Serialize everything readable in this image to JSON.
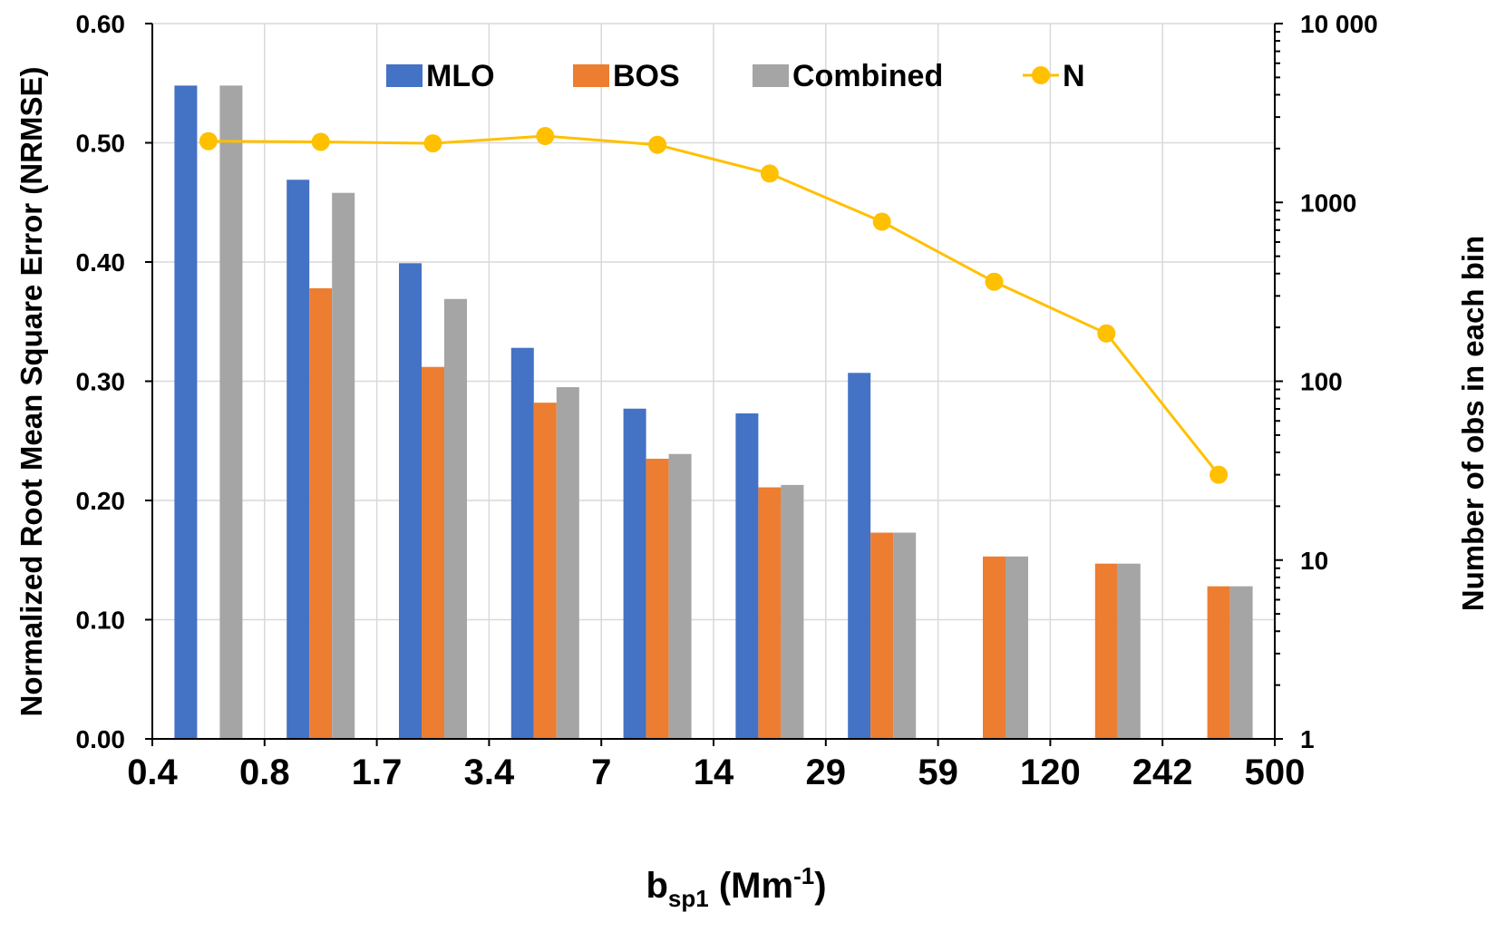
{
  "chart_data": {
    "type": "bar",
    "categories": [
      "0.4-0.8",
      "0.8-1.7",
      "1.7-3.4",
      "3.4-7",
      "7-14",
      "14-29",
      "29-59",
      "59-120",
      "120-242",
      "242-500"
    ],
    "x_tick_labels": [
      "0.4",
      "0.8",
      "1.7",
      "3.4",
      "7",
      "14",
      "29",
      "59",
      "120",
      "242",
      "500"
    ],
    "xlabel": {
      "main": "b",
      "sub": "sp1",
      "units_pre": " (Mm",
      "units_sup": "-1",
      "units_post": ")"
    },
    "ylabel": "Normalized Root Mean Square Error (NRMSE)",
    "y2label": "Number of obs in each bin",
    "ylim": [
      0,
      0.6
    ],
    "y_tick_labels": [
      "0.00",
      "0.10",
      "0.20",
      "0.30",
      "0.40",
      "0.50",
      "0.60"
    ],
    "y2lim": [
      1,
      10000
    ],
    "y2_scale": "log",
    "y2_tick_labels": [
      "1",
      "10",
      "100",
      "1000",
      "10 000"
    ],
    "series": [
      {
        "name": "MLO",
        "kind": "bar",
        "color": "#4472C4",
        "values": [
          0.548,
          0.469,
          0.399,
          0.328,
          0.277,
          0.273,
          0.307,
          null,
          null,
          null
        ]
      },
      {
        "name": "BOS",
        "kind": "bar",
        "color": "#ED7D31",
        "values": [
          null,
          0.378,
          0.312,
          0.282,
          0.235,
          0.211,
          0.173,
          0.153,
          0.147,
          0.128
        ]
      },
      {
        "name": "Combined",
        "kind": "bar",
        "color": "#A5A5A5",
        "values": [
          0.548,
          0.458,
          0.369,
          0.295,
          0.239,
          0.213,
          0.173,
          0.153,
          0.147,
          0.128
        ]
      },
      {
        "name": "N",
        "kind": "line",
        "axis": "secondary",
        "color": "#FFC000",
        "values": [
          2200,
          2180,
          2140,
          2350,
          2100,
          1450,
          780,
          360,
          185,
          30
        ]
      }
    ],
    "grid": true,
    "legend": "top-center"
  }
}
